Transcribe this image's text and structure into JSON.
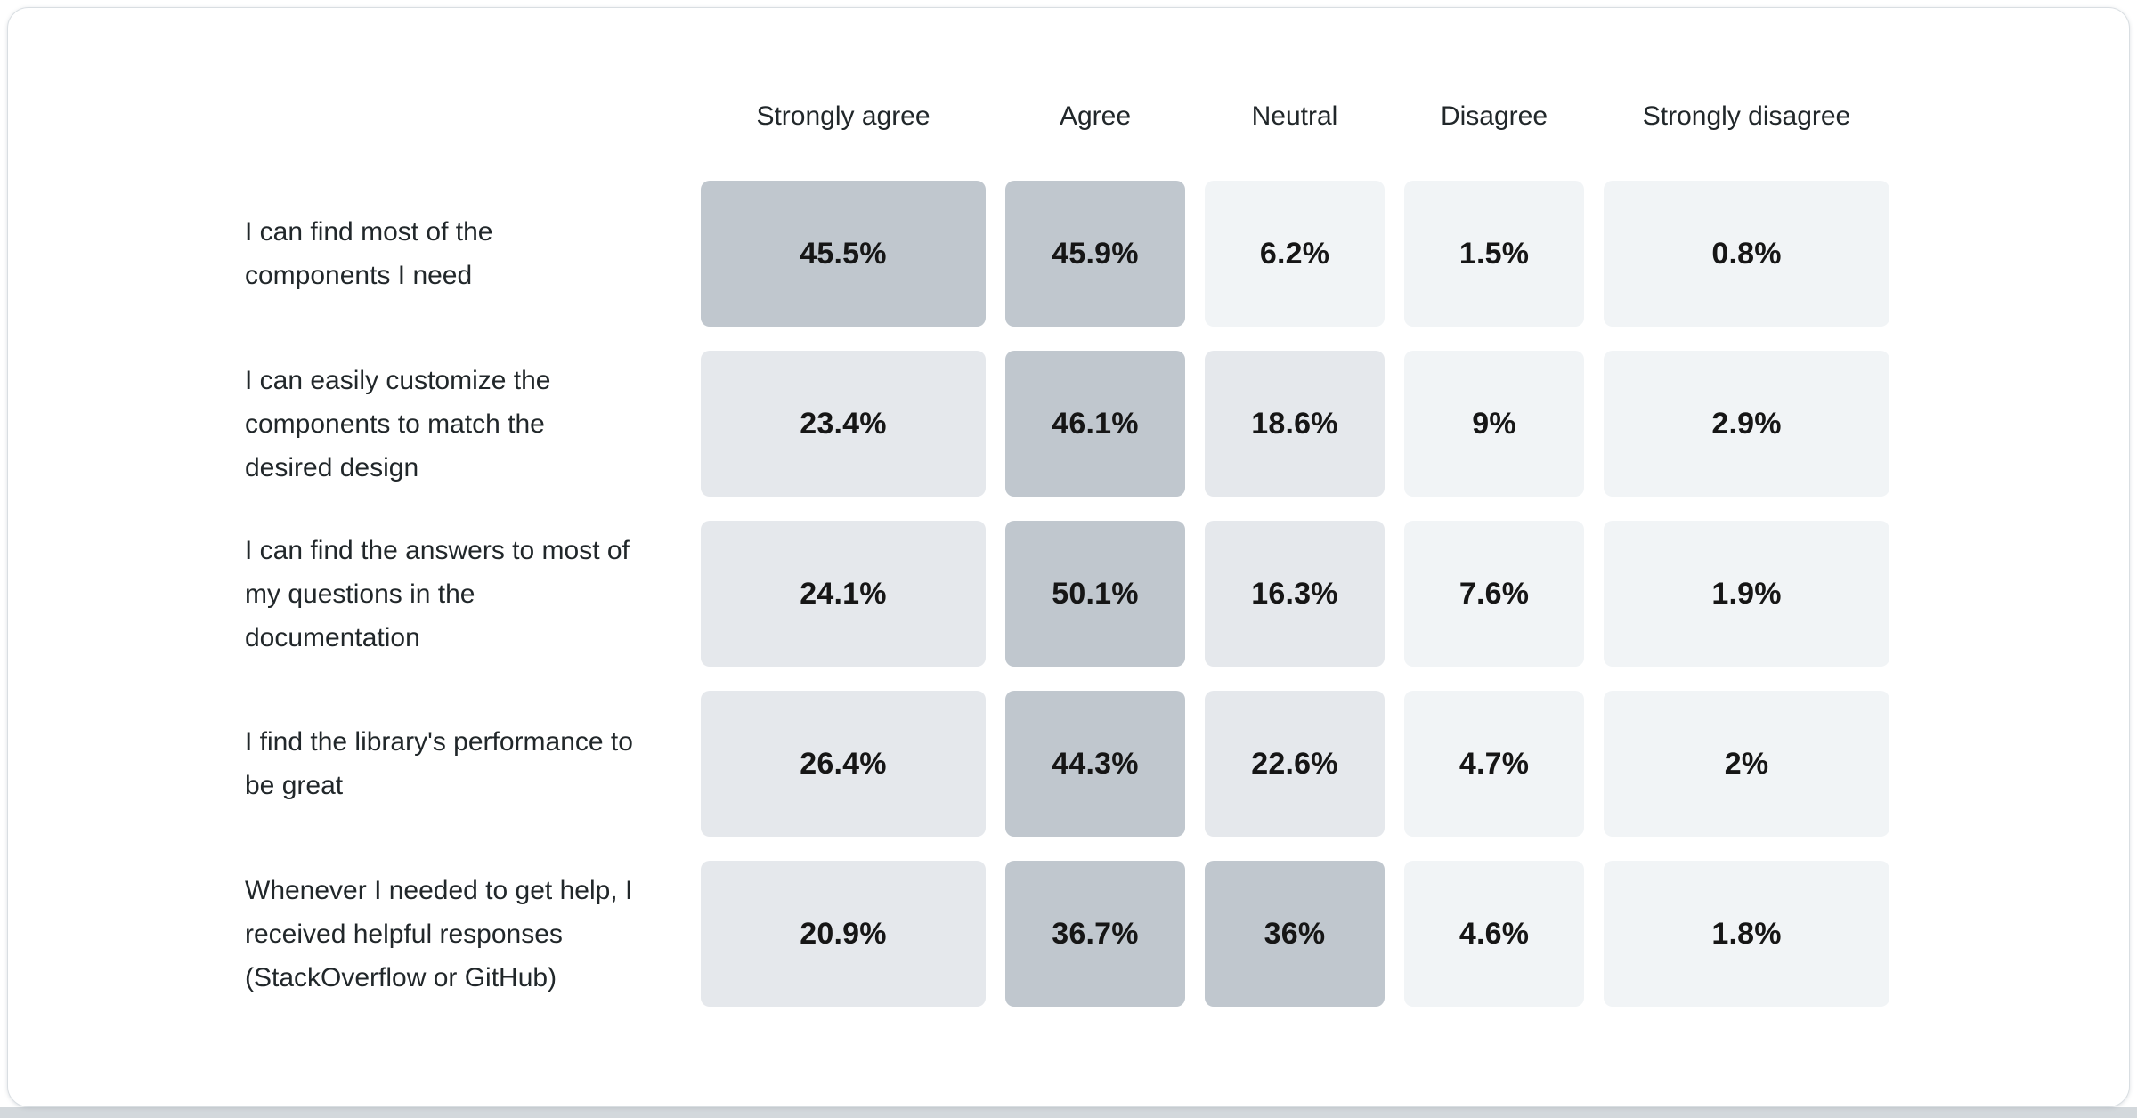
{
  "colors": {
    "card_bg": "#ffffff",
    "card_border": "#d9dee2",
    "page_strip": "#d3d8dc",
    "text_dark": "#161616",
    "label_text": "#21272a",
    "cell_low": "#f1f4f6",
    "cell_mid": "#e5e8ec",
    "cell_high": "#c0c7ce"
  },
  "shade_thresholds": {
    "high": 30,
    "mid": 10
  },
  "chart_data": {
    "type": "heatmap",
    "unit": "%",
    "columns": [
      "Strongly agree",
      "Agree",
      "Neutral",
      "Disagree",
      "Strongly disagree"
    ],
    "rows": [
      {
        "label": "I can find most of the components I need",
        "values": [
          45.5,
          45.9,
          6.2,
          1.5,
          0.8
        ]
      },
      {
        "label": "I can easily customize the components to match the desired design",
        "values": [
          23.4,
          46.1,
          18.6,
          9,
          2.9
        ]
      },
      {
        "label": "I can find the answers to most of my questions in the documentation",
        "values": [
          24.1,
          50.1,
          16.3,
          7.6,
          1.9
        ]
      },
      {
        "label": "I find the library's performance to be great",
        "values": [
          26.4,
          44.3,
          22.6,
          4.7,
          2
        ]
      },
      {
        "label": "Whenever I needed to get help, I received helpful responses (StackOverflow or GitHub)",
        "values": [
          20.9,
          36.7,
          36,
          4.6,
          1.8
        ]
      }
    ]
  }
}
